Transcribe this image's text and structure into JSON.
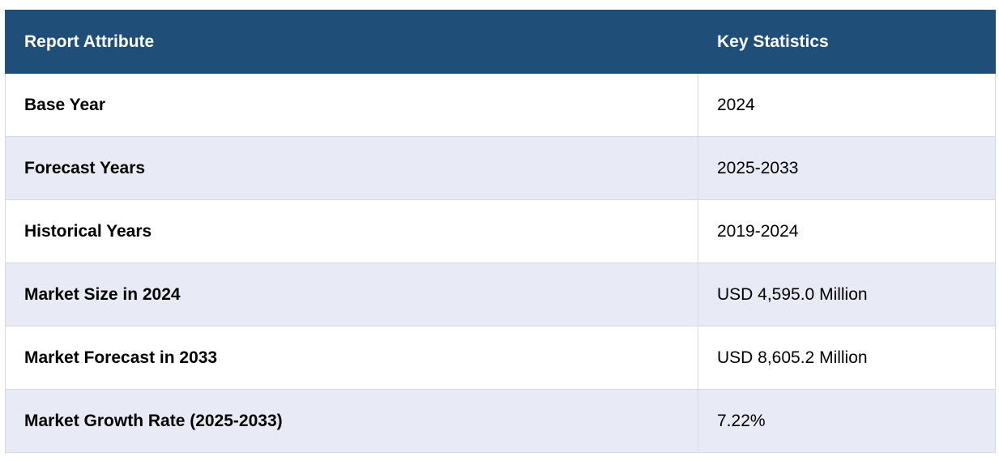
{
  "table": {
    "headers": [
      "Report Attribute",
      "Key Statistics"
    ],
    "rows": [
      {
        "attribute": "Base Year",
        "value": "2024"
      },
      {
        "attribute": "Forecast Years",
        "value": "2025-2033"
      },
      {
        "attribute": "Historical Years",
        "value": "2019-2024"
      },
      {
        "attribute": "Market Size in 2024",
        "value": "USD 4,595.0 Million"
      },
      {
        "attribute": "Market Forecast in 2033",
        "value": "USD 8,605.2 Million"
      },
      {
        "attribute": "Market Growth Rate (2025-2033)",
        "value": "7.22%"
      }
    ]
  },
  "colors": {
    "header_bg": "#1f4e79",
    "header_text": "#ffffff",
    "row_alt_bg": "#e8eaf5",
    "border": "#d7d9e0"
  }
}
